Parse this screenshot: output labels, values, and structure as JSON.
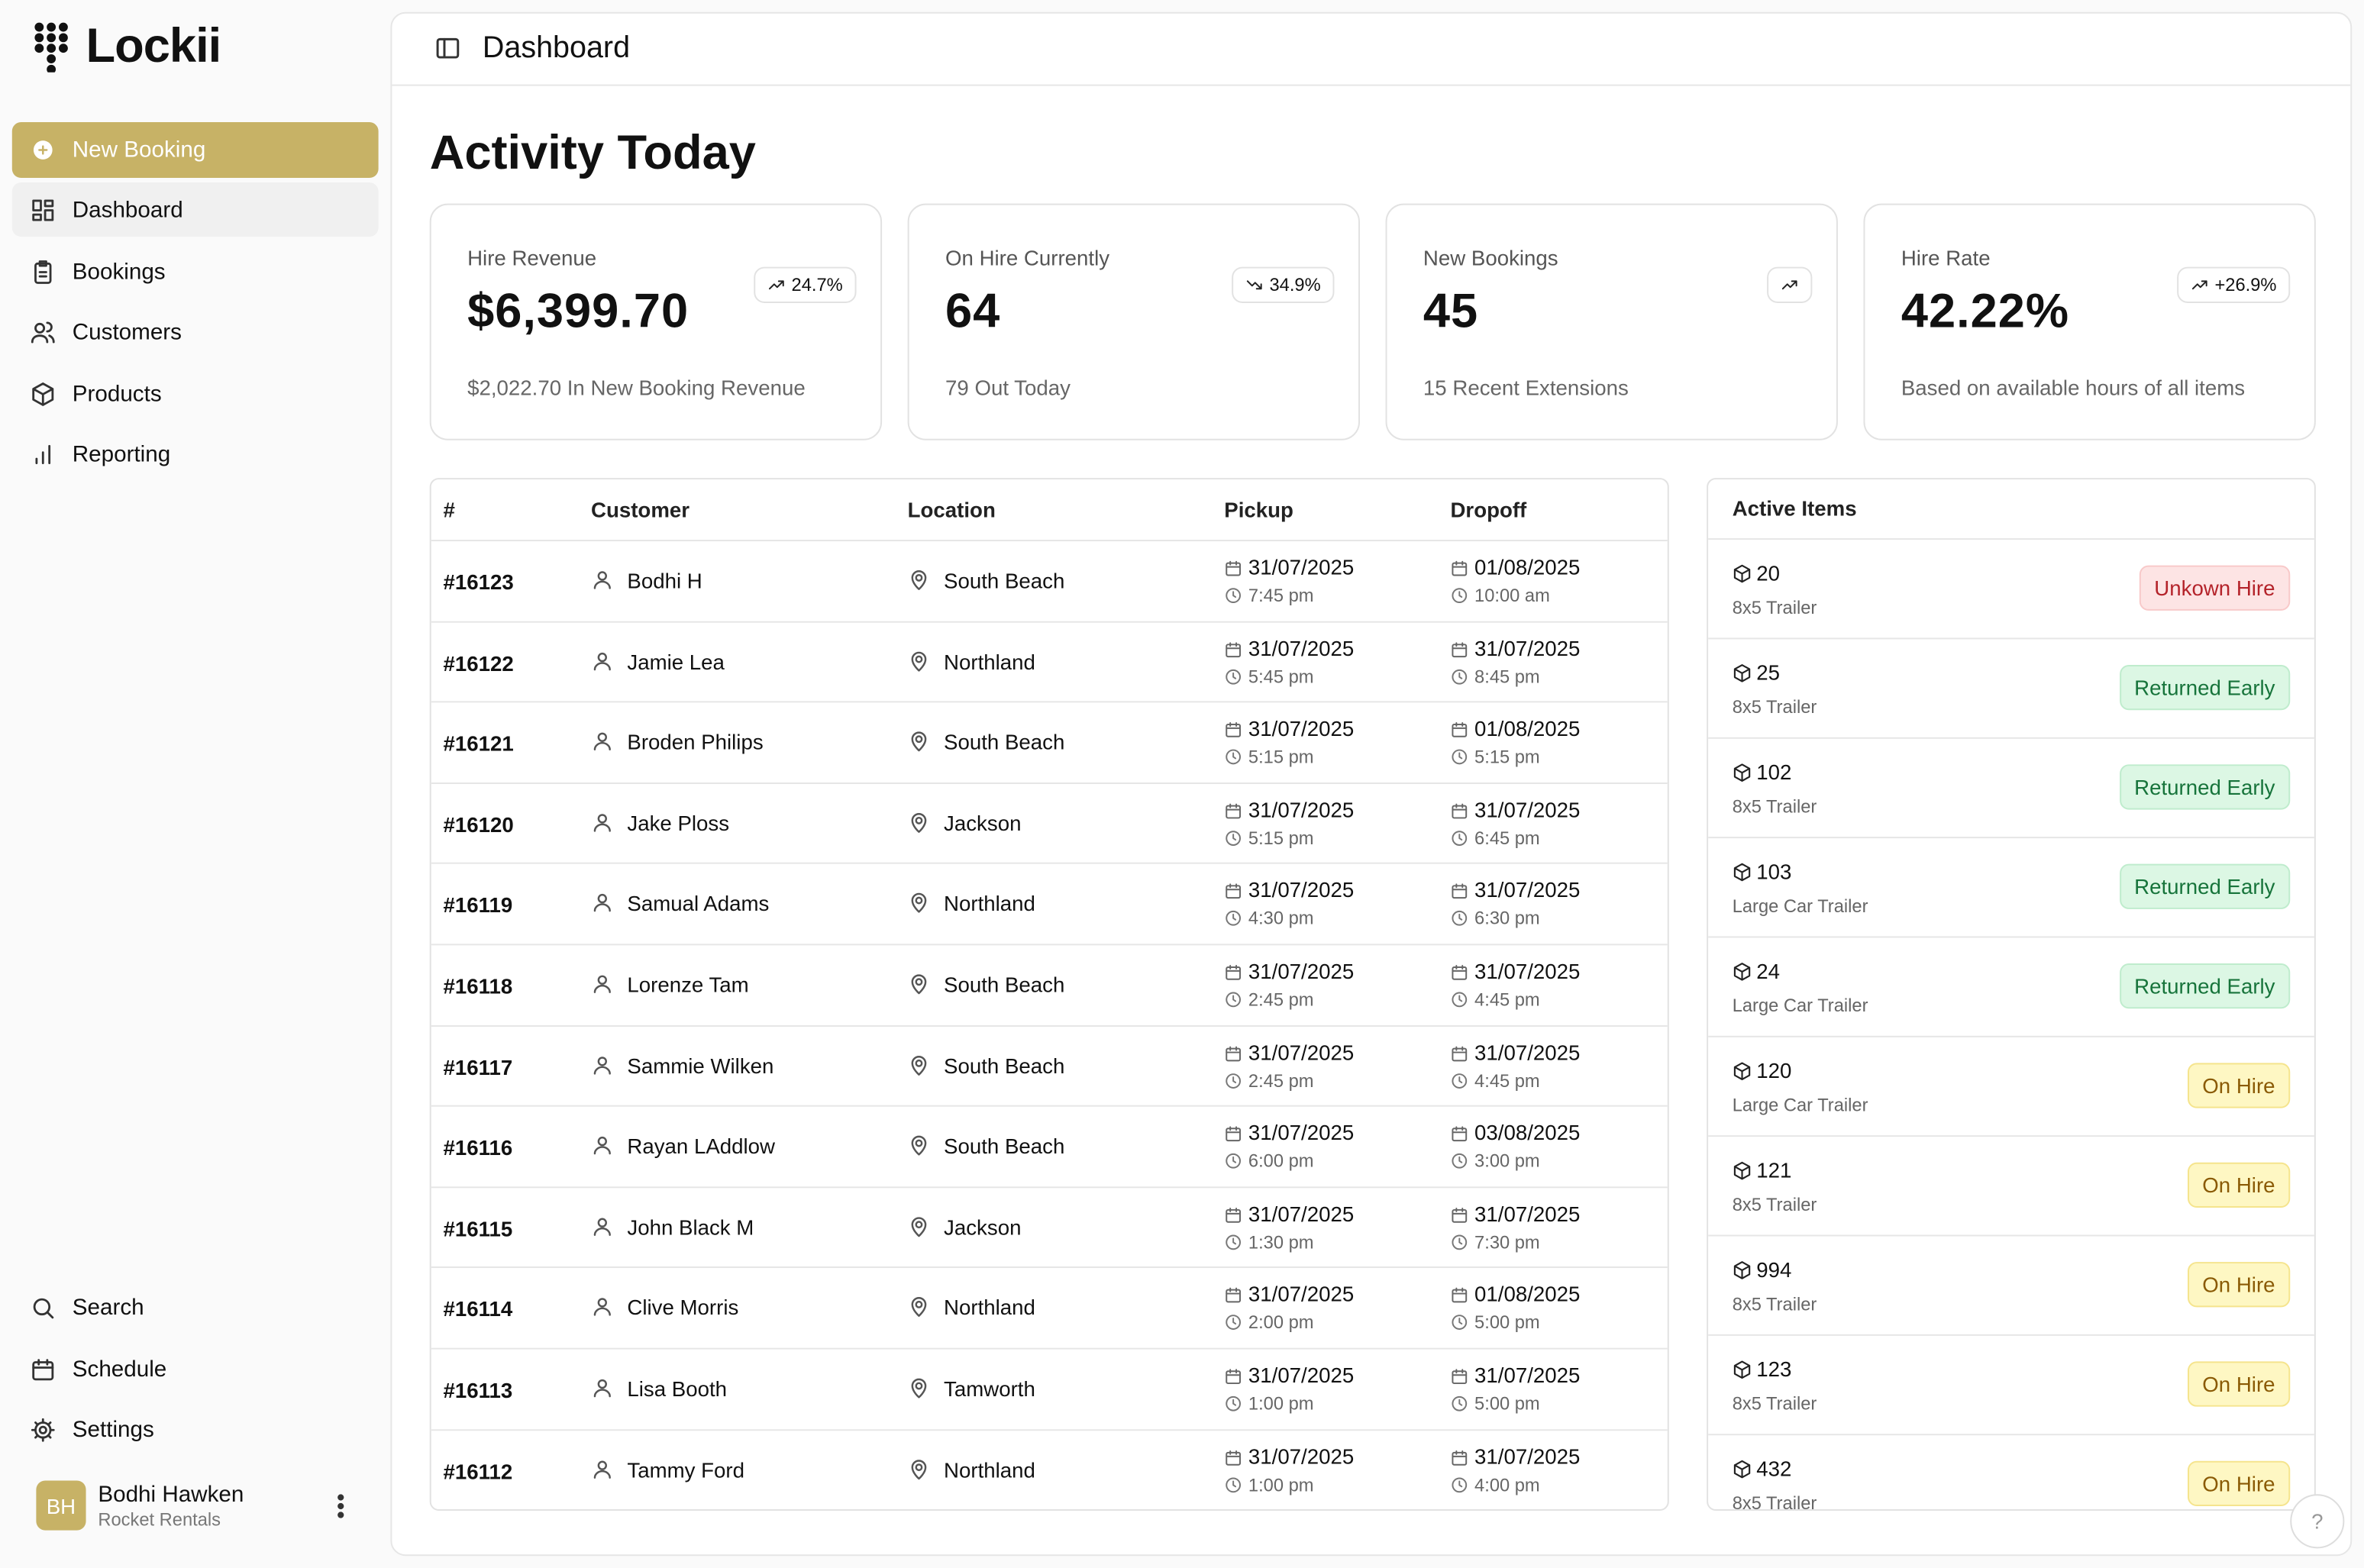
{
  "sidebar": {
    "brand": "Lockii",
    "primary_action": "New Booking",
    "nav": [
      "Dashboard",
      "Bookings",
      "Customers",
      "Products",
      "Reporting"
    ],
    "active_index": 0,
    "bottom_nav": [
      "Search",
      "Schedule",
      "Settings"
    ],
    "user": {
      "initials": "BH",
      "name": "Bodhi Hawken",
      "company": "Rocket Rentals"
    }
  },
  "header": {
    "title": "Dashboard"
  },
  "page_title": "Activity Today",
  "stats": [
    {
      "label": "Hire Revenue",
      "value": "$6,399.70",
      "change": "24.7%",
      "trend": "up",
      "note": "$2,022.70 In New Booking Revenue"
    },
    {
      "label": "On Hire Currently",
      "value": "64",
      "change": "34.9%",
      "trend": "down",
      "note": "79 Out Today"
    },
    {
      "label": "New Bookings",
      "value": "45",
      "trend": "up",
      "note": "15 Recent Extensions"
    },
    {
      "label": "Hire Rate",
      "value": "42.22%",
      "change": "+26.9%",
      "trend": "up",
      "note": "Based on available hours of all items"
    }
  ],
  "bookings": {
    "columns": [
      "#",
      "Customer",
      "Location",
      "Pickup",
      "Dropoff"
    ],
    "rows": [
      {
        "id": "#16123",
        "customer": "Bodhi H",
        "location": "South Beach",
        "pickup_date": "31/07/2025",
        "pickup_time": "7:45 pm",
        "dropoff_date": "01/08/2025",
        "dropoff_time": "10:00 am"
      },
      {
        "id": "#16122",
        "customer": "Jamie Lea",
        "location": "Northland",
        "pickup_date": "31/07/2025",
        "pickup_time": "5:45 pm",
        "dropoff_date": "31/07/2025",
        "dropoff_time": "8:45 pm"
      },
      {
        "id": "#16121",
        "customer": "Broden Philips",
        "location": "South Beach",
        "pickup_date": "31/07/2025",
        "pickup_time": "5:15 pm",
        "dropoff_date": "01/08/2025",
        "dropoff_time": "5:15 pm"
      },
      {
        "id": "#16120",
        "customer": "Jake Ploss",
        "location": "Jackson",
        "pickup_date": "31/07/2025",
        "pickup_time": "5:15 pm",
        "dropoff_date": "31/07/2025",
        "dropoff_time": "6:45 pm"
      },
      {
        "id": "#16119",
        "customer": "Samual Adams",
        "location": "Northland",
        "pickup_date": "31/07/2025",
        "pickup_time": "4:30 pm",
        "dropoff_date": "31/07/2025",
        "dropoff_time": "6:30 pm"
      },
      {
        "id": "#16118",
        "customer": "Lorenze Tam",
        "location": "South Beach",
        "pickup_date": "31/07/2025",
        "pickup_time": "2:45 pm",
        "dropoff_date": "31/07/2025",
        "dropoff_time": "4:45 pm"
      },
      {
        "id": "#16117",
        "customer": "Sammie Wilken",
        "location": "South Beach",
        "pickup_date": "31/07/2025",
        "pickup_time": "2:45 pm",
        "dropoff_date": "31/07/2025",
        "dropoff_time": "4:45 pm"
      },
      {
        "id": "#16116",
        "customer": "Rayan LAddlow",
        "location": "South Beach",
        "pickup_date": "31/07/2025",
        "pickup_time": "6:00 pm",
        "dropoff_date": "03/08/2025",
        "dropoff_time": "3:00 pm"
      },
      {
        "id": "#16115",
        "customer": "John Black M",
        "location": "Jackson",
        "pickup_date": "31/07/2025",
        "pickup_time": "1:30 pm",
        "dropoff_date": "31/07/2025",
        "dropoff_time": "7:30 pm"
      },
      {
        "id": "#16114",
        "customer": "Clive Morris",
        "location": "Northland",
        "pickup_date": "31/07/2025",
        "pickup_time": "2:00 pm",
        "dropoff_date": "01/08/2025",
        "dropoff_time": "5:00 pm"
      },
      {
        "id": "#16113",
        "customer": "Lisa Booth",
        "location": "Tamworth",
        "pickup_date": "31/07/2025",
        "pickup_time": "1:00 pm",
        "dropoff_date": "31/07/2025",
        "dropoff_time": "5:00 pm"
      },
      {
        "id": "#16112",
        "customer": "Tammy Ford",
        "location": "Northland",
        "pickup_date": "31/07/2025",
        "pickup_time": "1:00 pm",
        "dropoff_date": "31/07/2025",
        "dropoff_time": "4:00 pm"
      }
    ]
  },
  "active_items": {
    "title": "Active Items",
    "items": [
      {
        "number": "20",
        "type": "8x5 Trailer",
        "status": "Unkown Hire",
        "tone": "danger"
      },
      {
        "number": "25",
        "type": "8x5 Trailer",
        "status": "Returned Early",
        "tone": "success"
      },
      {
        "number": "102",
        "type": "8x5 Trailer",
        "status": "Returned Early",
        "tone": "success"
      },
      {
        "number": "103",
        "type": "Large Car Trailer",
        "status": "Returned Early",
        "tone": "success"
      },
      {
        "number": "24",
        "type": "Large Car Trailer",
        "status": "Returned Early",
        "tone": "success"
      },
      {
        "number": "120",
        "type": "Large Car Trailer",
        "status": "On Hire",
        "tone": "warning"
      },
      {
        "number": "121",
        "type": "8x5 Trailer",
        "status": "On Hire",
        "tone": "warning"
      },
      {
        "number": "994",
        "type": "8x5 Trailer",
        "status": "On Hire",
        "tone": "warning"
      },
      {
        "number": "123",
        "type": "8x5 Trailer",
        "status": "On Hire",
        "tone": "warning"
      },
      {
        "number": "432",
        "type": "8x5 Trailer",
        "status": "On Hire",
        "tone": "warning"
      }
    ]
  },
  "help": "?"
}
